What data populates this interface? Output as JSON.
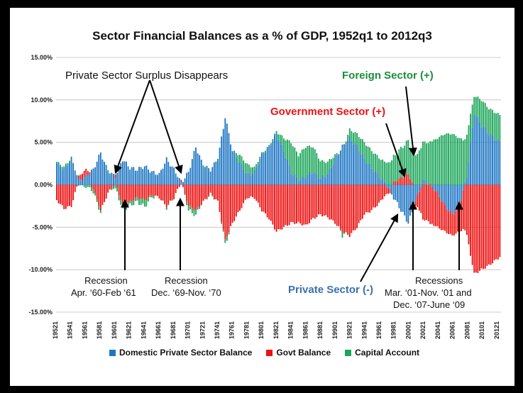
{
  "chart_data": {
    "type": "bar",
    "stacked": true,
    "title": "Sector Financial Balances as a % of GDP, 1952q1 to 2012q3",
    "ylim": [
      -15,
      15
    ],
    "yticks": [
      "15.00%",
      "10.00%",
      "5.00%",
      "0.00%",
      "-5.00%",
      "-10.00%",
      "-15.00%"
    ],
    "ytick_values": [
      15,
      10,
      5,
      0,
      -5,
      -10,
      -15
    ],
    "xtick_labels": [
      "19521",
      "19541",
      "19561",
      "19581",
      "19601",
      "19621",
      "19641",
      "19661",
      "19681",
      "19701",
      "19721",
      "19741",
      "19761",
      "19781",
      "19801",
      "19821",
      "19841",
      "19861",
      "19881",
      "19901",
      "19921",
      "19941",
      "19961",
      "19981",
      "20001",
      "20021",
      "20041",
      "20061",
      "20081",
      "20101",
      "20121"
    ],
    "series": [
      {
        "name": "Domestic Private Sector Balance",
        "color": "#1f77c4"
      },
      {
        "name": "Govt Balance",
        "color": "#ee1111"
      },
      {
        "name": "Capital Account",
        "color": "#1ca65a"
      }
    ],
    "keyframes": {
      "year": [
        1952,
        1953,
        1954,
        1955,
        1956,
        1957,
        1958,
        1959,
        1960,
        1961,
        1962,
        1963,
        1964,
        1965,
        1966,
        1967,
        1968,
        1969,
        1970,
        1971,
        1972,
        1973,
        1974,
        1975,
        1976,
        1977,
        1978,
        1979,
        1980,
        1981,
        1982,
        1983,
        1984,
        1985,
        1986,
        1987,
        1988,
        1989,
        1990,
        1991,
        1992,
        1993,
        1994,
        1995,
        1996,
        1997,
        1998,
        1999,
        2000,
        2001,
        2002,
        2003,
        2004,
        2005,
        2006,
        2007,
        2008,
        2009,
        2010,
        2011,
        2012.5
      ],
      "private": [
        2.5,
        1.8,
        3.0,
        0.5,
        1.0,
        1.8,
        3.8,
        1.5,
        1.0,
        3.0,
        2.0,
        1.8,
        2.2,
        1.5,
        1.2,
        3.0,
        1.8,
        0.2,
        1.5,
        4.5,
        2.2,
        1.8,
        3.0,
        8.0,
        4.0,
        2.5,
        1.2,
        1.5,
        3.5,
        4.5,
        6.0,
        4.0,
        1.5,
        0.5,
        1.0,
        1.5,
        0.8,
        1.2,
        3.0,
        4.5,
        5.5,
        4.5,
        3.0,
        2.0,
        1.0,
        0.0,
        -1.5,
        -3.0,
        -4.5,
        -2.0,
        0.5,
        0.0,
        -1.0,
        -2.5,
        -3.5,
        -2.5,
        1.0,
        8.5,
        7.0,
        6.0,
        5.0
      ],
      "govt": [
        -1.8,
        -2.8,
        -2.5,
        0.5,
        0.8,
        -0.5,
        -3.0,
        -1.0,
        0.3,
        -2.5,
        -2.0,
        -1.5,
        -1.8,
        -1.2,
        -1.5,
        -2.5,
        -1.5,
        0.3,
        -2.5,
        -3.0,
        -2.0,
        -1.0,
        -2.0,
        -6.5,
        -4.5,
        -3.0,
        -1.5,
        -1.5,
        -3.0,
        -4.0,
        -5.5,
        -5.0,
        -4.5,
        -4.5,
        -4.8,
        -4.0,
        -3.5,
        -3.8,
        -4.5,
        -5.5,
        -6.0,
        -5.0,
        -3.5,
        -3.0,
        -2.2,
        -1.0,
        0.3,
        0.8,
        1.2,
        -0.5,
        -4.0,
        -4.5,
        -4.0,
        -3.0,
        -2.5,
        -3.0,
        -6.0,
        -10.5,
        -10.0,
        -9.5,
        -8.5
      ],
      "capital": [
        0.2,
        0.3,
        0.2,
        0.0,
        -0.3,
        -0.4,
        -0.3,
        0.3,
        -0.5,
        -0.5,
        -0.4,
        -0.5,
        -0.8,
        -0.2,
        0.1,
        -0.2,
        0.0,
        0.1,
        -0.5,
        -0.6,
        0.2,
        -0.2,
        0.2,
        -0.5,
        0.0,
        1.0,
        1.2,
        0.5,
        0.2,
        0.1,
        0.3,
        1.5,
        3.5,
        3.0,
        3.5,
        3.0,
        2.0,
        1.5,
        0.5,
        -0.5,
        1.0,
        1.5,
        2.0,
        2.0,
        2.2,
        2.5,
        3.0,
        3.5,
        4.0,
        3.5,
        4.5,
        5.0,
        5.5,
        6.0,
        6.0,
        5.5,
        5.0,
        2.0,
        3.0,
        3.0,
        3.2
      ]
    },
    "annotations": [
      {
        "text": "Private Sector Surplus Disappears"
      },
      {
        "text": "Foreign Sector (+)",
        "color": "#1a8f3a"
      },
      {
        "text": "Government Sector (+)",
        "color": "#ee1111"
      },
      {
        "text": "Private Sector (-)",
        "color": "#3a6fb0"
      },
      {
        "text": "Recession"
      },
      {
        "text": "Apr. ‘60-Feb ‘61"
      },
      {
        "text": "Recession"
      },
      {
        "text": "Dec. ‘69-Nov. ‘70"
      },
      {
        "text": "Recessions"
      },
      {
        "text": "Mar. ‘01-Nov. ‘01 and"
      },
      {
        "text": "Dec. ‘07-June ‘09"
      }
    ],
    "legend_position": "bottom"
  }
}
